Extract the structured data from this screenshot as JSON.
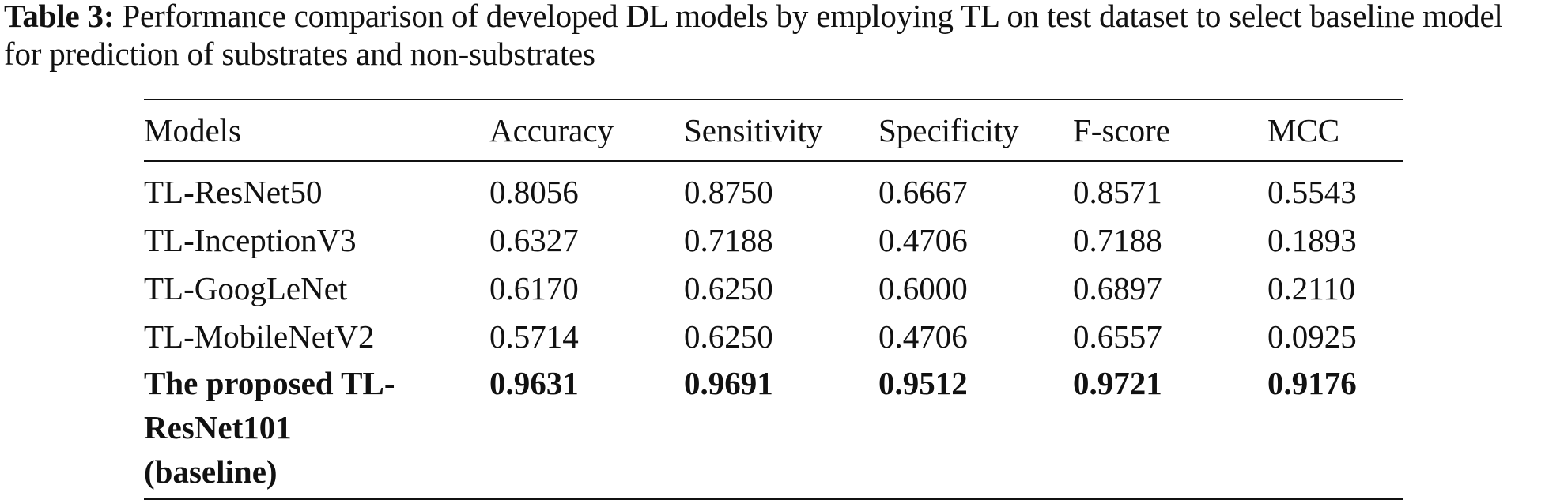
{
  "caption": {
    "label": "Table 3:",
    "text": "Performance comparison of developed DL models by employing TL on test dataset to select baseline model for prediction of substrates and non-substrates"
  },
  "table": {
    "headers": [
      "Models",
      "Accuracy",
      "Sensitivity",
      "Specificity",
      "F-score",
      "MCC"
    ],
    "rows": [
      [
        "TL-ResNet50",
        "0.8056",
        "0.8750",
        "0.6667",
        "0.8571",
        "0.5543"
      ],
      [
        "TL-InceptionV3",
        "0.6327",
        "0.7188",
        "0.4706",
        "0.7188",
        "0.1893"
      ],
      [
        "TL-GoogLeNet",
        "0.6170",
        "0.6250",
        "0.6000",
        "0.6897",
        "0.2110"
      ],
      [
        "TL-MobileNetV2",
        "0.5714",
        "0.6250",
        "0.4706",
        "0.6557",
        "0.0925"
      ],
      [
        "The proposed TL-ResNet101 (baseline)",
        "0.9631",
        "0.9691",
        "0.9512",
        "0.9721",
        "0.9176"
      ]
    ],
    "highlighted_row": "The proposed TL-ResNet101 (baseline)"
  }
}
